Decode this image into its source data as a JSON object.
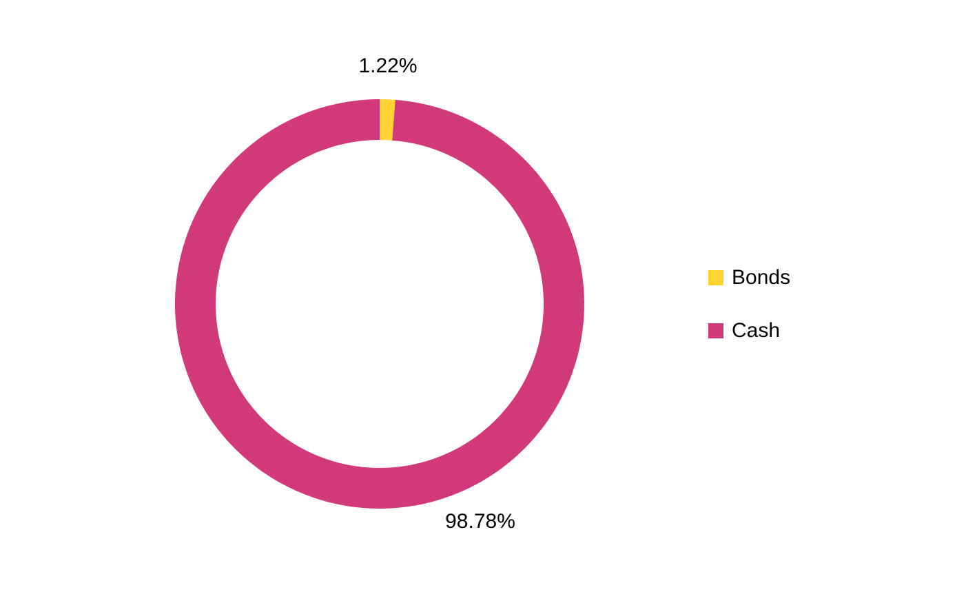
{
  "chart_data": {
    "type": "donut",
    "categories": [
      "Bonds",
      "Cash"
    ],
    "values": [
      1.22,
      98.78
    ],
    "value_labels": [
      "1.22%",
      "98.78%"
    ],
    "colors": [
      "#ffd432",
      "#d1397a"
    ],
    "legend": "right"
  }
}
